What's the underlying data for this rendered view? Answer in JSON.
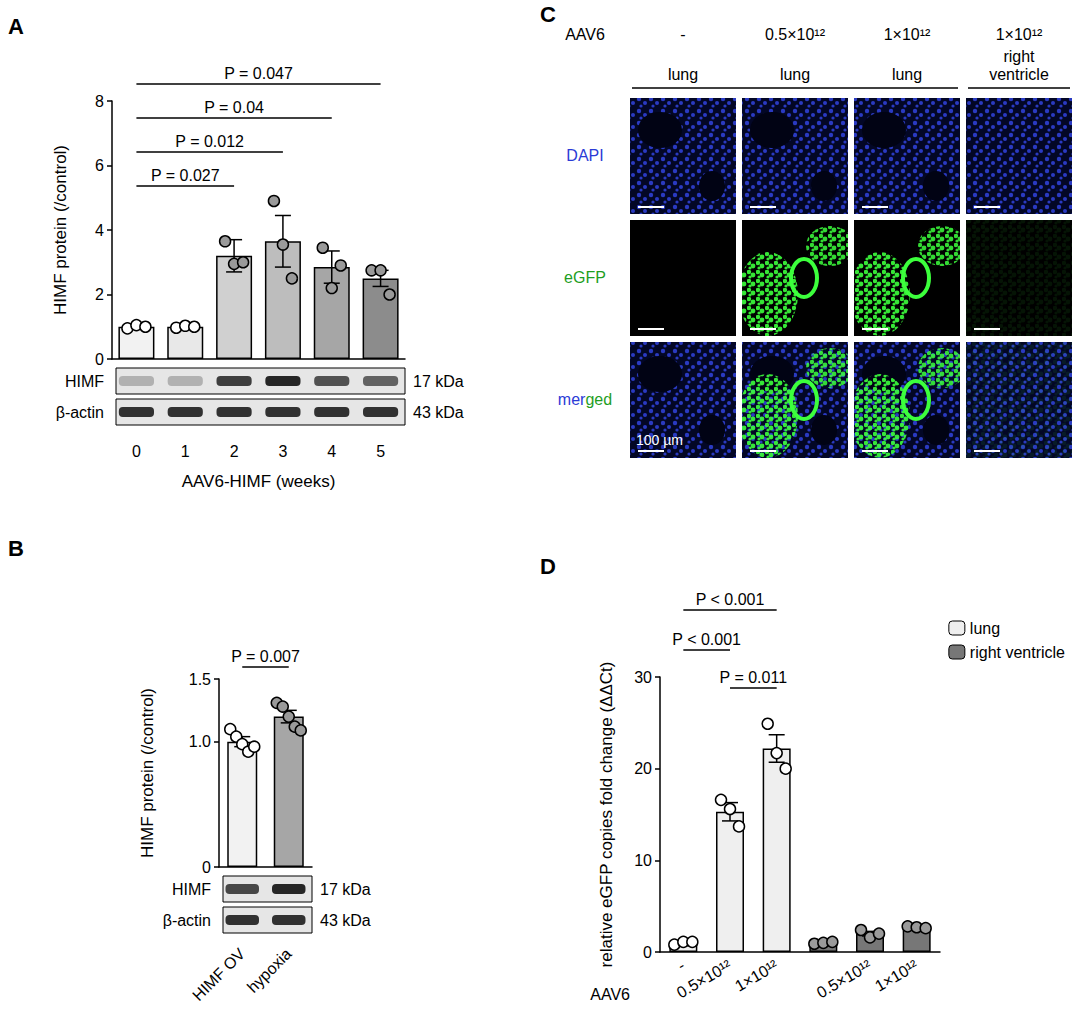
{
  "chart_data": [
    {
      "panel": "A",
      "type": "bar",
      "categories": [
        "0",
        "1",
        "2",
        "3",
        "4",
        "5"
      ],
      "values": [
        1.0,
        1.0,
        3.2,
        3.65,
        2.85,
        2.5
      ],
      "errors": [
        0.03,
        0.03,
        0.5,
        0.8,
        0.5,
        0.25
      ],
      "points": [
        [
          0.95,
          1.05,
          1.0
        ],
        [
          0.97,
          1.03,
          1.0
        ],
        [
          3.65,
          2.95,
          3.0
        ],
        [
          4.9,
          3.55,
          2.5
        ],
        [
          3.45,
          2.2,
          2.9
        ],
        [
          2.75,
          2.75,
          2.0
        ]
      ],
      "colors": [
        "#f2f2f2",
        "#e8e8e8",
        "#d0d0d0",
        "#bdbdbd",
        "#a6a6a6",
        "#8c8c8c"
      ],
      "x_label": "AAV6-HIMF (weeks)",
      "y_label": "HIMF protein (/control)",
      "ylim": [
        0,
        8
      ],
      "yticks": [
        0,
        2,
        4,
        6,
        8
      ],
      "grid": false,
      "comparisons": [
        {
          "from": "0",
          "to": "5",
          "label": "P = 0.047"
        },
        {
          "from": "0",
          "to": "4",
          "label": "P = 0.04"
        },
        {
          "from": "0",
          "to": "3",
          "label": "P = 0.012"
        },
        {
          "from": "0",
          "to": "2",
          "label": "P = 0.027"
        }
      ],
      "blot": {
        "rows": [
          {
            "label": "HIMF",
            "size": "17 kDa"
          },
          {
            "label": "β-actin",
            "size": "43 kDa"
          }
        ]
      }
    },
    {
      "panel": "B",
      "type": "bar",
      "categories": [
        "HIMF OV",
        "hypoxia"
      ],
      "values": [
        1.0,
        1.2
      ],
      "errors": [
        0.04,
        0.05
      ],
      "points": [
        [
          1.1,
          1.04,
          0.98,
          0.92,
          0.96
        ],
        [
          1.31,
          1.28,
          1.2,
          1.12,
          1.09
        ]
      ],
      "colors": [
        "#f2f2f2",
        "#a6a6a6"
      ],
      "y_label": "HIMF protein (/control)",
      "ylim": [
        0,
        1.5
      ],
      "yticks": [
        0,
        {
          "value": 1,
          "label": "1.0"
        },
        1.5
      ],
      "grid": false,
      "comparisons": [
        {
          "from": "HIMF OV",
          "to": "hypoxia",
          "label": "P = 0.007"
        }
      ],
      "blot": {
        "rows": [
          {
            "label": "HIMF",
            "size": "17 kDa"
          },
          {
            "label": "β-actin",
            "size": "43 kDa"
          }
        ]
      }
    },
    {
      "panel": "D",
      "type": "bar",
      "categories": [
        "-",
        "0.5×10¹²",
        "1×10¹²",
        null,
        "0.5×10¹²",
        "1×10¹²"
      ],
      "series": [
        {
          "name": "lung",
          "color": "#efefef",
          "values": [
            1.0,
            15.3,
            22.2,
            null,
            null,
            null
          ],
          "errors": [
            0.1,
            1.0,
            1.5,
            null,
            null,
            null
          ],
          "points": [
            [
              0.8,
              1.1,
              1.1
            ],
            [
              16.6,
              15.6,
              13.7
            ],
            [
              24.9,
              21.7,
              20.0
            ],
            null,
            null,
            null
          ]
        },
        {
          "name": "right ventricle",
          "color": "#777777",
          "values": [
            null,
            null,
            null,
            1.0,
            2.0,
            2.7
          ],
          "errors": [
            null,
            null,
            null,
            0.05,
            0.25,
            0.1
          ],
          "points": [
            null,
            null,
            null,
            [
              0.9,
              1.0,
              1.1
            ],
            [
              2.4,
              1.6,
              2.0
            ],
            [
              2.8,
              2.7,
              2.6
            ]
          ]
        }
      ],
      "y_label": "relative eGFP copies fold change (ΔΔCt)",
      "annotation": "AAV6",
      "ylim": [
        0,
        30
      ],
      "yticks": [
        0,
        10,
        20,
        30
      ],
      "grid": false,
      "legend": "top-right",
      "comparisons": [
        {
          "series": "lung",
          "from": "-",
          "to": "1×10¹²",
          "label": "P < 0.001"
        },
        {
          "series": "lung",
          "from": "-",
          "to": "0.5×10¹²",
          "label": "P < 0.001"
        },
        {
          "series": "lung",
          "from": "0.5×10¹²",
          "to": "1×10¹²",
          "label": "P = 0.011"
        }
      ]
    }
  ],
  "image_panel": {
    "panel": "C",
    "row_title": "AAV6",
    "columns": [
      {
        "dose": "-",
        "tissue": "lung"
      },
      {
        "dose": "0.5×10¹²",
        "tissue": "lung"
      },
      {
        "dose": "1×10¹²",
        "tissue": "lung"
      },
      {
        "dose": "1×10¹²",
        "tissue": "right ventricle"
      }
    ],
    "rows": [
      "DAPI",
      "eGFP",
      "merged"
    ],
    "scale_bar": "100 µm"
  }
}
